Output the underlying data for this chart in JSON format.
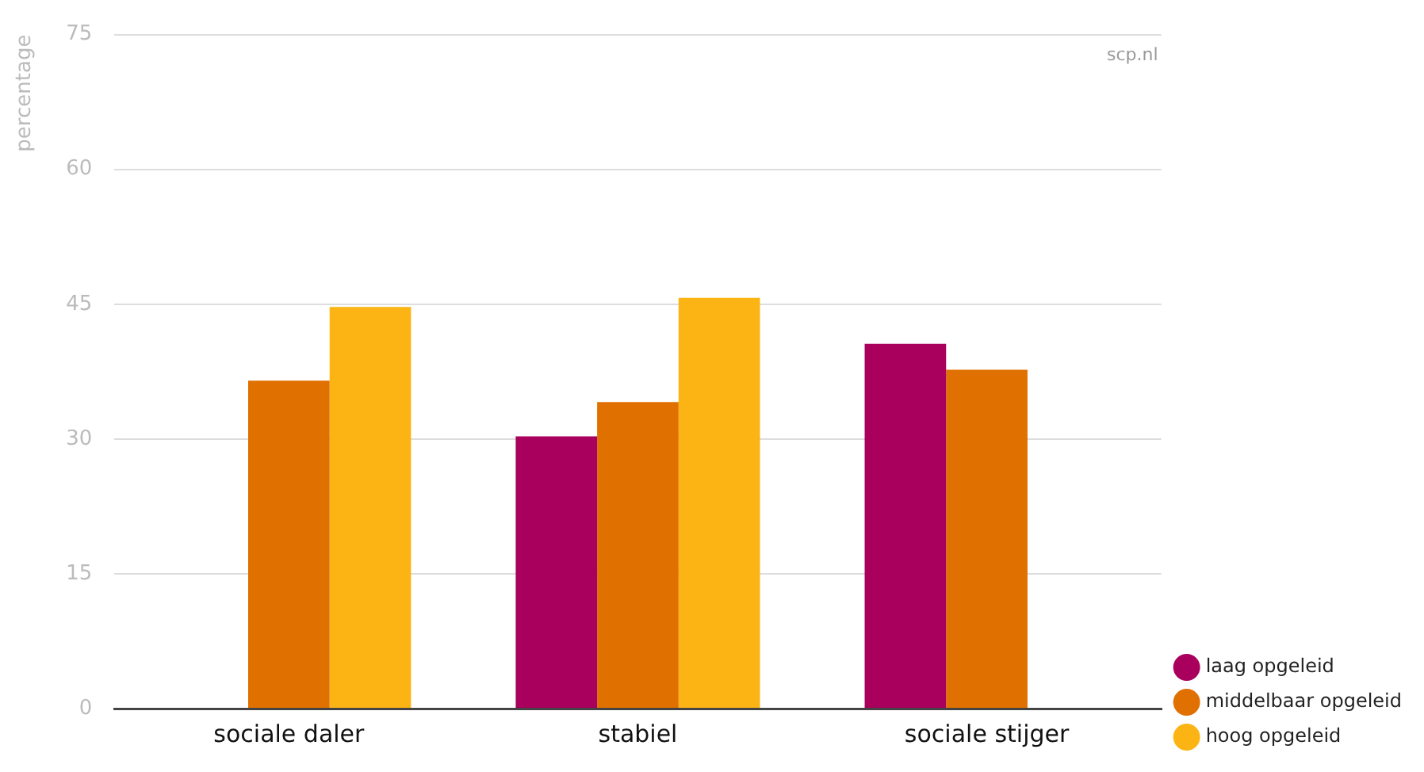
{
  "chart_data": {
    "type": "bar",
    "ylabel": "percentage",
    "categories": [
      "sociale daler",
      "stabiel",
      "sociale stijger"
    ],
    "series": [
      {
        "name": "laag opgeleid",
        "color": "#a8005c",
        "values": [
          null,
          30.3,
          40.6
        ]
      },
      {
        "name": "middelbaar opgeleid",
        "color": "#e07000",
        "values": [
          36.5,
          34.1,
          37.7
        ]
      },
      {
        "name": "hoog opgeleid",
        "color": "#fbb414",
        "values": [
          44.7,
          45.7,
          null
        ]
      }
    ],
    "ylim": [
      0,
      75
    ],
    "yticks": [
      0,
      15,
      30,
      45,
      60,
      75
    ],
    "grid": "y",
    "legend": "bottom right",
    "annotations": [
      "scp.nl"
    ]
  }
}
